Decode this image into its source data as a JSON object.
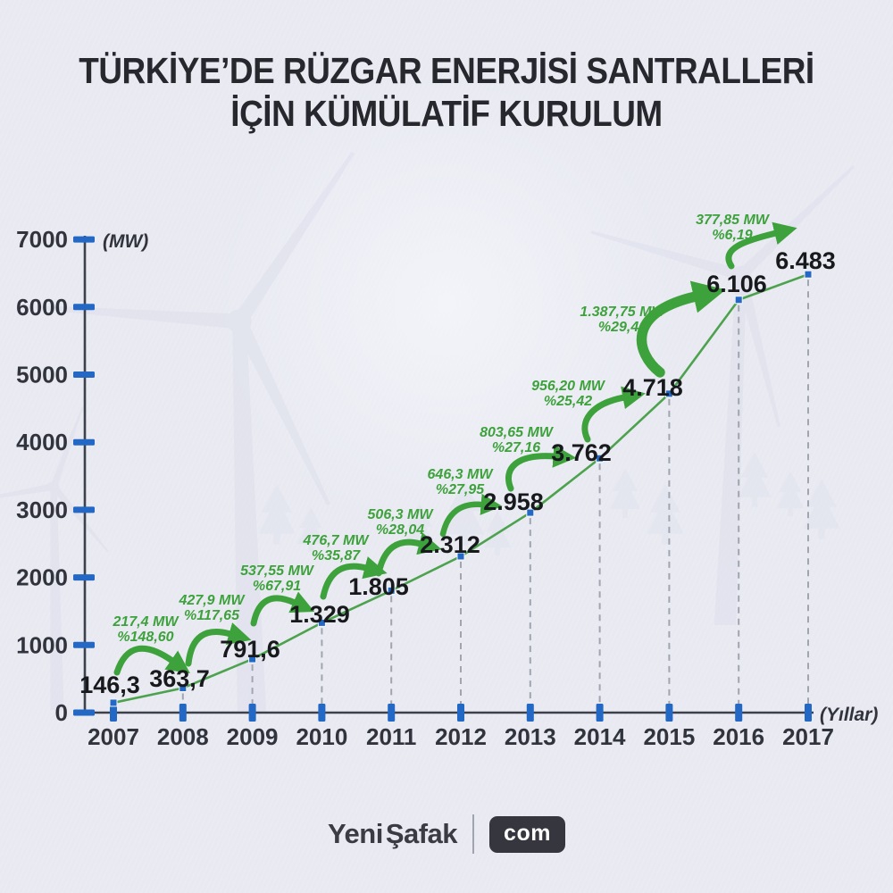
{
  "title": {
    "line1": "TÜRKİYE’DE RÜZGAR ENERJİSİ SANTRALLERİ",
    "line2": "İÇİN KÜMÜLATİF KURULUM"
  },
  "chart_data": {
    "type": "line",
    "x": [
      "2007",
      "2008",
      "2009",
      "2010",
      "2011",
      "2012",
      "2013",
      "2014",
      "2015",
      "2016",
      "2017"
    ],
    "values": [
      146.3,
      363.7,
      791.6,
      1329,
      1805,
      2312,
      2958,
      3762,
      4718,
      6106,
      6483
    ],
    "point_labels": [
      "146,3",
      "363,7",
      "791,6",
      "1.329",
      "1.805",
      "2.312",
      "2.958",
      "3.762",
      "4.718",
      "6.106",
      "6.483"
    ],
    "yaxis": {
      "unit_label": "(MW)",
      "ticks": [
        0,
        1000,
        2000,
        3000,
        4000,
        5000,
        6000,
        7000
      ],
      "range": [
        0,
        7000
      ]
    },
    "xaxis": {
      "unit_label": "(Yıllar)"
    },
    "annotations": [
      {
        "change": "217,4 MW",
        "percent": "%148,60"
      },
      {
        "change": "427,9 MW",
        "percent": "%117,65"
      },
      {
        "change": "537,55 MW",
        "percent": "%67,91"
      },
      {
        "change": "476,7 MW",
        "percent": "%35,87"
      },
      {
        "change": "506,3 MW",
        "percent": "%28,04"
      },
      {
        "change": "646,3 MW",
        "percent": "%27,95"
      },
      {
        "change": "803,65 MW",
        "percent": "%27,16"
      },
      {
        "change": "956,20 MW",
        "percent": "%25,42"
      },
      {
        "change": "1.387,75 MW",
        "percent": "%29,41"
      },
      {
        "change": "377,85 MW",
        "percent": "%6,19"
      }
    ],
    "legend_position": "none",
    "grid": "dashed-vertical-droplines",
    "colors": {
      "background": "#e8e9f1",
      "title_text": "#26282e",
      "line": "#4da24e",
      "arrow": "#3ea23c",
      "annotation_text": "#3ea23c",
      "marker": "#2268c4",
      "tick": "#2268c4",
      "axis": "#3c414b",
      "axis_label_text": "#31343c",
      "point_label_text": "#17191d",
      "dashed_dropline": "#a0a5b0"
    }
  },
  "footer": {
    "brand_part1": "Yeni",
    "brand_part2": "Şafak",
    "badge": "com"
  }
}
